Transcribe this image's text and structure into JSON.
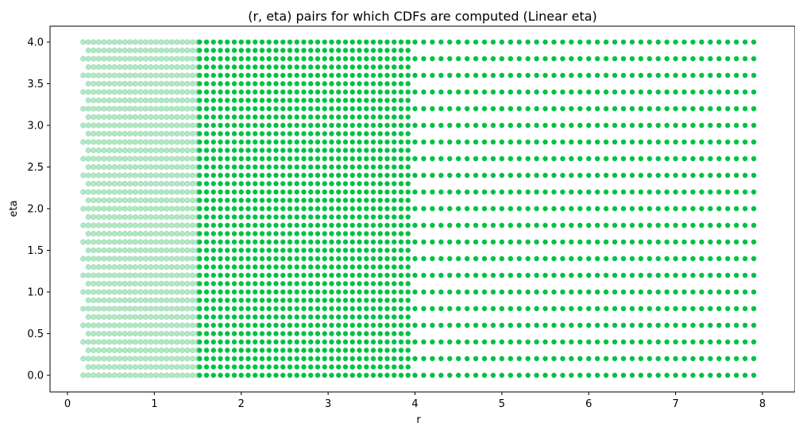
{
  "chart_data": {
    "type": "scatter",
    "title": "(r, eta) pairs for which CDFs are computed (Linear eta)",
    "xlabel": "r",
    "ylabel": "eta",
    "xlim": [
      -0.2,
      8.2
    ],
    "ylim": [
      -0.2,
      4.2
    ],
    "x_ticks": [
      0,
      1,
      2,
      3,
      4,
      5,
      6,
      7,
      8
    ],
    "y_ticks": [
      0.0,
      0.5,
      1.0,
      1.5,
      2.0,
      2.5,
      3.0,
      3.5,
      4.0
    ],
    "y_tick_labels": [
      "0.0",
      "0.5",
      "1.0",
      "1.5",
      "2.0",
      "2.5",
      "3.0",
      "3.5",
      "4.0"
    ],
    "grid": false,
    "legend": "none",
    "series": [
      {
        "color": "#b3e8c6",
        "edge_color": "#9ad8b0",
        "marker": "circle",
        "regions": [
          {
            "x_start": 0.18,
            "x_end": 1.5,
            "x_step": 0.06,
            "y_start": 0.0,
            "y_end": 4.0,
            "y_step": 0.1,
            "x_offset_odd_rows": 0.06
          }
        ]
      },
      {
        "color": "#00c244",
        "marker": "circle",
        "regions": [
          {
            "x_start": 1.52,
            "x_end": 1.52,
            "x_step": 0.1,
            "y_start": 0.0,
            "y_end": 4.0,
            "y_step": 0.1
          },
          {
            "x_start": 1.6,
            "x_end": 3.92,
            "x_step": 0.08,
            "y_start": 0.0,
            "y_end": 4.0,
            "y_step": 0.1
          },
          {
            "x_start": 4.0,
            "x_end": 7.9,
            "x_step": 0.1,
            "y_start": 0.0,
            "y_end": 4.0,
            "y_step": 0.2
          }
        ]
      }
    ]
  }
}
